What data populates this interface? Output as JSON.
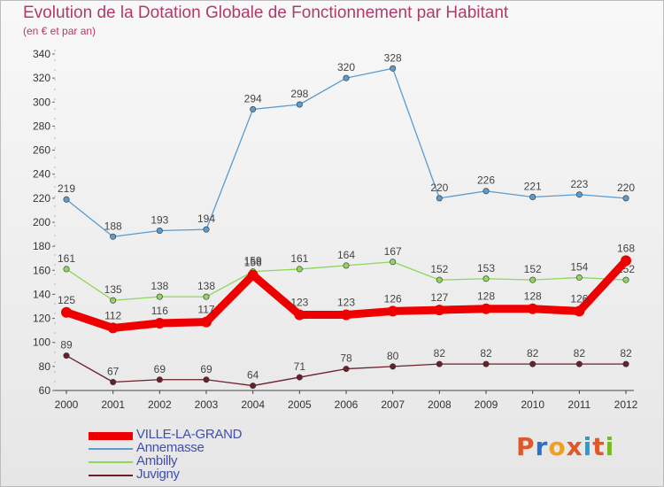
{
  "header": {
    "title": "Evolution de la Dotation Globale de Fonctionnement par Habitant",
    "subtitle": "(en € et par an)"
  },
  "brand": {
    "text": "Proxiti",
    "colors": [
      "#e0582a",
      "#2a6fc8",
      "#f0a020",
      "#e0582a",
      "#2a9ad0",
      "#e0582a",
      "#78b820"
    ]
  },
  "chart_data": {
    "type": "line",
    "x": [
      2000,
      2001,
      2002,
      2003,
      2004,
      2005,
      2006,
      2007,
      2008,
      2009,
      2010,
      2011,
      2012
    ],
    "ylim": [
      60,
      340
    ],
    "yticks": [
      60,
      80,
      100,
      120,
      140,
      160,
      180,
      200,
      220,
      240,
      260,
      280,
      300,
      320,
      340
    ],
    "grid": false,
    "legend_placement": "bottom-left",
    "series": [
      {
        "name": "VILLE-LA-GRAND",
        "color": "#ee0000",
        "values": [
          125,
          112,
          116,
          117,
          156,
          123,
          123,
          126,
          127,
          128,
          128,
          126,
          168
        ]
      },
      {
        "name": "Annemasse",
        "color": "#5a9bd0",
        "values": [
          219,
          188,
          193,
          194,
          294,
          298,
          320,
          328,
          220,
          226,
          221,
          223,
          220
        ]
      },
      {
        "name": "Ambilly",
        "color": "#8ed65c",
        "values": [
          161,
          135,
          138,
          138,
          159,
          161,
          164,
          167,
          152,
          153,
          152,
          154,
          152
        ]
      },
      {
        "name": "Juvigny",
        "color": "#6b1f2a",
        "values": [
          89,
          67,
          69,
          69,
          64,
          71,
          78,
          80,
          82,
          82,
          82,
          82,
          82
        ]
      }
    ]
  }
}
